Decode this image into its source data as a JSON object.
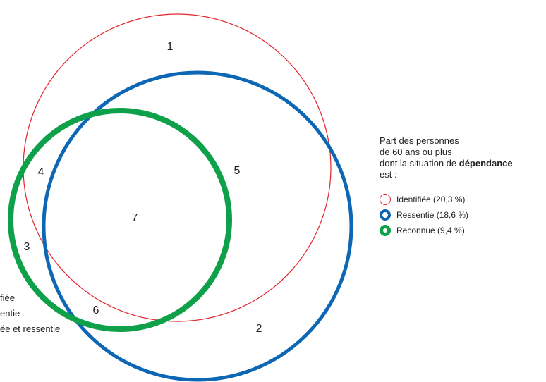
{
  "colors": {
    "identified": "#e3242b",
    "felt": "#0d67b4",
    "recognized": "#0ea14a"
  },
  "regions": [
    {
      "id": "1",
      "label": "1"
    },
    {
      "id": "2",
      "label": "2"
    },
    {
      "id": "3",
      "label": "3"
    },
    {
      "id": "4",
      "label": "4"
    },
    {
      "id": "5",
      "label": "5"
    },
    {
      "id": "6",
      "label": "6"
    },
    {
      "id": "7",
      "label": "7"
    }
  ],
  "left_notes": [
    "fiée",
    "entie",
    "ée et ressentie"
  ],
  "legend": {
    "intro_1": "Part des personnes",
    "intro_2": "de 60 ans ou plus",
    "intro_3_prefix": "dont la situation de ",
    "intro_3_bold": "dépendance",
    "intro_4": "est :",
    "items": [
      {
        "label": "Identifiée (20,3 %)",
        "color": "#e3242b",
        "icon": "thin-ring-icon",
        "share_percent": 20.3
      },
      {
        "label": "Ressentie (18,6 %)",
        "color": "#0d67b4",
        "icon": "thick-ring-icon",
        "share_percent": 18.6
      },
      {
        "label": "Reconnue (9,4 %)",
        "color": "#0ea14a",
        "icon": "thick-ring-icon",
        "share_percent": 9.4
      }
    ]
  }
}
